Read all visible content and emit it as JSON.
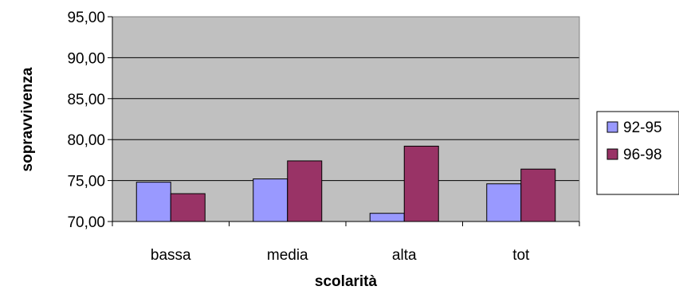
{
  "chart_data": {
    "type": "bar",
    "title": "",
    "xlabel": "scolarità",
    "ylabel": "sopravvivenza",
    "categories": [
      "bassa",
      "media",
      "alta",
      "tot"
    ],
    "series": [
      {
        "name": "92-95",
        "color": "#9999ff",
        "values": [
          74.8,
          75.2,
          71.0,
          74.6
        ]
      },
      {
        "name": "96-98",
        "color": "#993366",
        "values": [
          73.4,
          77.4,
          79.2,
          76.4
        ]
      }
    ],
    "ylim": [
      70,
      95
    ],
    "yticks": [
      "70,00",
      "75,00",
      "80,00",
      "85,00",
      "90,00",
      "95,00"
    ],
    "ytick_values": [
      70,
      75,
      80,
      85,
      90,
      95
    ],
    "grid": true,
    "plot_background": "#c0c0c0",
    "legend_position": "right"
  }
}
